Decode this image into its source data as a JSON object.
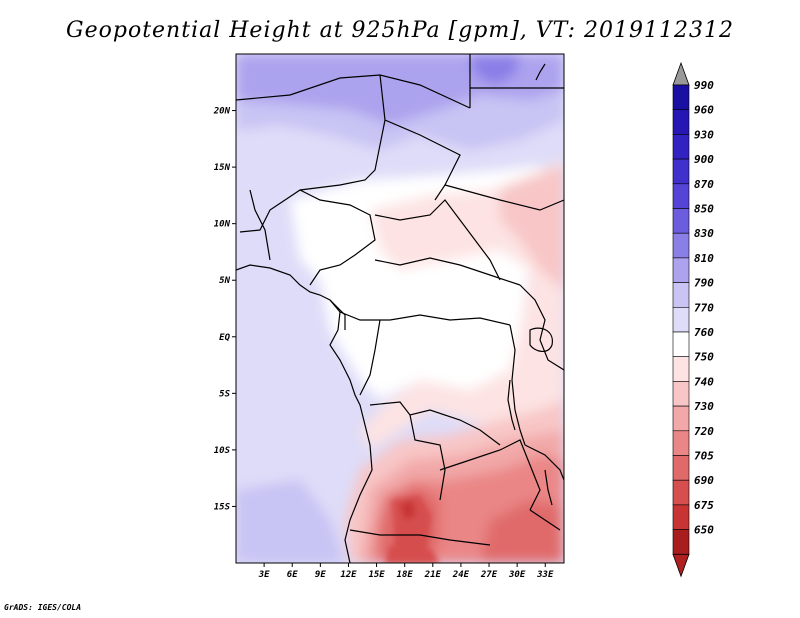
{
  "title": "Geopotential Height at 925hPa [gpm], VT: 2019112312",
  "footer": "GrADS: IGES/COLA",
  "map": {
    "lon_range": [
      0,
      35
    ],
    "lat_range": [
      -20,
      25
    ],
    "lat_ticks": [
      {
        "value": 20,
        "label": "20N"
      },
      {
        "value": 15,
        "label": "15N"
      },
      {
        "value": 10,
        "label": "10N"
      },
      {
        "value": 5,
        "label": "5N"
      },
      {
        "value": 0,
        "label": "EQ"
      },
      {
        "value": -5,
        "label": "5S"
      },
      {
        "value": -10,
        "label": "10S"
      },
      {
        "value": -15,
        "label": "15S"
      }
    ],
    "lon_ticks": [
      {
        "value": 3,
        "label": "3E"
      },
      {
        "value": 6,
        "label": "6E"
      },
      {
        "value": 9,
        "label": "9E"
      },
      {
        "value": 12,
        "label": "12E"
      },
      {
        "value": 15,
        "label": "15E"
      },
      {
        "value": 18,
        "label": "18E"
      },
      {
        "value": 21,
        "label": "21E"
      },
      {
        "value": 24,
        "label": "24E"
      },
      {
        "value": 27,
        "label": "27E"
      },
      {
        "value": 30,
        "label": "30E"
      },
      {
        "value": 33,
        "label": "33E"
      }
    ]
  },
  "colorbar": {
    "levels": [
      "990",
      "960",
      "930",
      "900",
      "870",
      "850",
      "830",
      "810",
      "790",
      "770",
      "760",
      "750",
      "740",
      "730",
      "720",
      "705",
      "690",
      "675",
      "650"
    ],
    "colors": [
      "#1a0fa3",
      "#2616b3",
      "#3322c2",
      "#4031cc",
      "#5544d6",
      "#6c5ddf",
      "#8a7ee7",
      "#aca3ee",
      "#c8c4f4",
      "#dedcf8",
      "#ffffff",
      "#fde3e3",
      "#f8c6c6",
      "#f2a8a8",
      "#ea8686",
      "#e06a6a",
      "#d64e4e",
      "#c83434",
      "#a81e1e"
    ],
    "top_triangle_color": "#999999",
    "bottom_triangle_color": "#b02020"
  }
}
